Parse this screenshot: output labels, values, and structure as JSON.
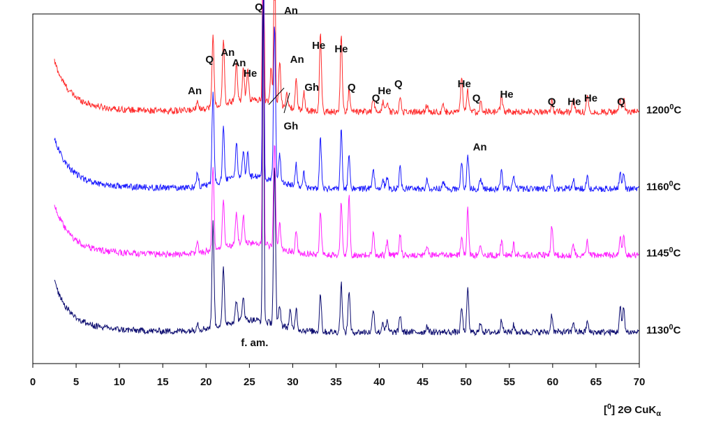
{
  "chart_data": {
    "type": "line",
    "title": "",
    "xlabel": "[0] 2Θ CuKα",
    "ylabel": "",
    "xlim": [
      0,
      70
    ],
    "x_ticks": [
      0,
      5,
      10,
      15,
      20,
      25,
      30,
      35,
      40,
      45,
      50,
      55,
      60,
      65,
      70
    ],
    "grid": false,
    "y_axis_ticks": false,
    "series": [
      {
        "name": "1200°C",
        "name_base": "1200",
        "name_sup": "0",
        "name_unit": "C",
        "color": "#ff2a2a",
        "offset": 0.72,
        "peaks": [
          [
            19.0,
            0.03
          ],
          [
            20.8,
            0.2
          ],
          [
            22.0,
            0.18
          ],
          [
            23.5,
            0.11
          ],
          [
            24.3,
            0.09
          ],
          [
            24.8,
            0.08
          ],
          [
            26.6,
            1.0
          ],
          [
            27.5,
            0.1
          ],
          [
            27.9,
            0.85
          ],
          [
            28.5,
            0.12
          ],
          [
            29.3,
            0.04
          ],
          [
            30.4,
            0.08
          ],
          [
            31.3,
            0.05
          ],
          [
            33.2,
            0.22
          ],
          [
            35.6,
            0.22
          ],
          [
            36.5,
            0.06
          ],
          [
            39.3,
            0.04
          ],
          [
            40.4,
            0.03
          ],
          [
            40.9,
            0.03
          ],
          [
            42.4,
            0.04
          ],
          [
            45.5,
            0.02
          ],
          [
            47.4,
            0.02
          ],
          [
            49.5,
            0.1
          ],
          [
            50.2,
            0.06
          ],
          [
            51.7,
            0.03
          ],
          [
            54.1,
            0.05
          ],
          [
            59.9,
            0.03
          ],
          [
            62.4,
            0.04
          ],
          [
            64.0,
            0.05
          ],
          [
            67.8,
            0.03
          ],
          [
            68.2,
            0.04
          ]
        ]
      },
      {
        "name": "1160°C",
        "name_base": "1160",
        "name_sup": "0",
        "name_unit": "C",
        "color": "#1a1aff",
        "offset": 0.5,
        "peaks": [
          [
            19.0,
            0.04
          ],
          [
            20.8,
            0.26
          ],
          [
            22.0,
            0.16
          ],
          [
            23.5,
            0.1
          ],
          [
            24.3,
            0.08
          ],
          [
            24.8,
            0.07
          ],
          [
            26.6,
            1.0
          ],
          [
            27.9,
            0.45
          ],
          [
            28.5,
            0.08
          ],
          [
            30.4,
            0.06
          ],
          [
            31.3,
            0.04
          ],
          [
            33.2,
            0.14
          ],
          [
            35.6,
            0.17
          ],
          [
            36.5,
            0.1
          ],
          [
            39.3,
            0.06
          ],
          [
            40.4,
            0.03
          ],
          [
            40.9,
            0.03
          ],
          [
            42.4,
            0.06
          ],
          [
            45.5,
            0.03
          ],
          [
            47.4,
            0.02
          ],
          [
            49.5,
            0.08
          ],
          [
            50.2,
            0.1
          ],
          [
            51.7,
            0.03
          ],
          [
            54.1,
            0.05
          ],
          [
            55.5,
            0.03
          ],
          [
            59.9,
            0.04
          ],
          [
            62.4,
            0.03
          ],
          [
            64.0,
            0.04
          ],
          [
            67.8,
            0.05
          ],
          [
            68.2,
            0.05
          ]
        ]
      },
      {
        "name": "1145°C",
        "name_base": "1145",
        "name_sup": "0",
        "name_unit": "C",
        "color": "#ff22ff",
        "offset": 0.31,
        "peaks": [
          [
            19.0,
            0.03
          ],
          [
            20.8,
            0.24
          ],
          [
            22.0,
            0.14
          ],
          [
            23.5,
            0.09
          ],
          [
            24.3,
            0.08
          ],
          [
            26.6,
            1.0
          ],
          [
            27.9,
            0.3
          ],
          [
            28.5,
            0.07
          ],
          [
            30.4,
            0.06
          ],
          [
            33.2,
            0.12
          ],
          [
            35.6,
            0.15
          ],
          [
            36.5,
            0.17
          ],
          [
            39.3,
            0.07
          ],
          [
            40.9,
            0.04
          ],
          [
            42.4,
            0.06
          ],
          [
            45.5,
            0.03
          ],
          [
            49.5,
            0.06
          ],
          [
            50.2,
            0.13
          ],
          [
            51.7,
            0.03
          ],
          [
            54.1,
            0.04
          ],
          [
            55.5,
            0.03
          ],
          [
            59.9,
            0.08
          ],
          [
            62.4,
            0.03
          ],
          [
            64.0,
            0.04
          ],
          [
            67.8,
            0.06
          ],
          [
            68.2,
            0.06
          ]
        ]
      },
      {
        "name": "1130°C",
        "name_base": "1130",
        "name_sup": "0",
        "name_unit": "C",
        "color": "#0a0a6e",
        "offset": 0.09,
        "peaks": [
          [
            19.0,
            0.02
          ],
          [
            20.8,
            0.3
          ],
          [
            22.0,
            0.16
          ],
          [
            23.5,
            0.06
          ],
          [
            24.3,
            0.07
          ],
          [
            26.6,
            1.0
          ],
          [
            27.9,
            0.45
          ],
          [
            28.5,
            0.06
          ],
          [
            29.7,
            0.05
          ],
          [
            30.4,
            0.06
          ],
          [
            33.2,
            0.11
          ],
          [
            35.6,
            0.14
          ],
          [
            36.5,
            0.12
          ],
          [
            39.3,
            0.07
          ],
          [
            40.4,
            0.03
          ],
          [
            40.9,
            0.03
          ],
          [
            42.4,
            0.05
          ],
          [
            45.5,
            0.02
          ],
          [
            49.5,
            0.07
          ],
          [
            50.2,
            0.12
          ],
          [
            51.7,
            0.03
          ],
          [
            54.1,
            0.04
          ],
          [
            55.5,
            0.02
          ],
          [
            59.9,
            0.05
          ],
          [
            62.4,
            0.03
          ],
          [
            64.0,
            0.03
          ],
          [
            67.8,
            0.07
          ],
          [
            68.2,
            0.07
          ]
        ]
      }
    ],
    "annotations": [
      {
        "text": "Q",
        "x": 26.1,
        "y": 1.01
      },
      {
        "text": "An",
        "x": 29.8,
        "y": 1.0
      },
      {
        "text": "Q",
        "x": 20.4,
        "y": 0.86
      },
      {
        "text": "An",
        "x": 22.5,
        "y": 0.88
      },
      {
        "text": "An",
        "x": 23.8,
        "y": 0.85
      },
      {
        "text": "He",
        "x": 25.1,
        "y": 0.82
      },
      {
        "text": "An",
        "x": 18.7,
        "y": 0.77
      },
      {
        "text": "An",
        "x": 30.5,
        "y": 0.86
      },
      {
        "text": "Gh",
        "x": 32.2,
        "y": 0.78
      },
      {
        "text": "Gh",
        "x": 29.8,
        "y": 0.67
      },
      {
        "text": "He",
        "x": 33.0,
        "y": 0.9
      },
      {
        "text": "He",
        "x": 35.6,
        "y": 0.89
      },
      {
        "text": "Q",
        "x": 36.8,
        "y": 0.78
      },
      {
        "text": "Q",
        "x": 39.6,
        "y": 0.75
      },
      {
        "text": "He",
        "x": 40.6,
        "y": 0.77
      },
      {
        "text": "Q",
        "x": 42.2,
        "y": 0.79
      },
      {
        "text": "He",
        "x": 49.8,
        "y": 0.79
      },
      {
        "text": "Q",
        "x": 51.2,
        "y": 0.75
      },
      {
        "text": "An",
        "x": 51.6,
        "y": 0.61
      },
      {
        "text": "He",
        "x": 54.7,
        "y": 0.76
      },
      {
        "text": "Q",
        "x": 59.9,
        "y": 0.74
      },
      {
        "text": "He",
        "x": 62.5,
        "y": 0.74
      },
      {
        "text": "He",
        "x": 64.4,
        "y": 0.75
      },
      {
        "text": "Q",
        "x": 67.9,
        "y": 0.74
      },
      {
        "text": "f. am.",
        "x": 25.6,
        "y": 0.05
      }
    ]
  }
}
